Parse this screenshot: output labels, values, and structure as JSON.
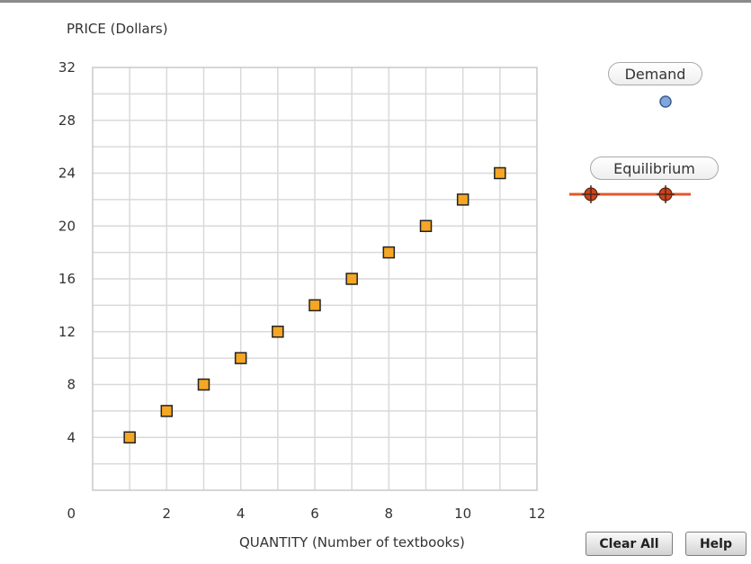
{
  "chart_data": {
    "type": "scatter",
    "ylabel": "PRICE (Dollars)",
    "xlabel": "QUANTITY (Number of textbooks)",
    "xlim": [
      0,
      12
    ],
    "ylim": [
      0,
      32
    ],
    "x_ticks": [
      2,
      4,
      6,
      8,
      10,
      12
    ],
    "y_ticks": [
      4,
      8,
      12,
      16,
      20,
      24,
      28,
      32
    ],
    "origin_label": "0",
    "grid": true,
    "series": [
      {
        "name": "",
        "marker": "square",
        "color": "#f5a623",
        "x": [
          1,
          2,
          3,
          4,
          5,
          6,
          7,
          8,
          9,
          10,
          11
        ],
        "y": [
          4,
          6,
          8,
          10,
          12,
          14,
          16,
          18,
          20,
          22,
          24
        ]
      }
    ]
  },
  "tools": {
    "demand": {
      "label": "Demand",
      "marker_color": "#7fa7dd"
    },
    "equilibrium": {
      "label": "Equilibrium",
      "line_color": "#e2592b",
      "marker_color": "#d0421b"
    }
  },
  "buttons": {
    "clear_all": "Clear All",
    "help": "Help"
  }
}
